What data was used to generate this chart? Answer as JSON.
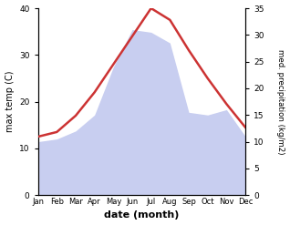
{
  "months": [
    "Jan",
    "Feb",
    "Mar",
    "Apr",
    "May",
    "Jun",
    "Jul",
    "Aug",
    "Sep",
    "Oct",
    "Nov",
    "Dec"
  ],
  "temperature": [
    12.5,
    13.5,
    17.0,
    22.0,
    28.0,
    34.0,
    40.0,
    37.5,
    31.0,
    25.0,
    19.5,
    14.5
  ],
  "precipitation": [
    10.0,
    10.5,
    12.0,
    15.0,
    24.0,
    31.0,
    30.5,
    28.5,
    15.5,
    15.0,
    16.0,
    11.0
  ],
  "temp_color": "#cc3333",
  "precip_fill_color": "#c8cef0",
  "ylabel_left": "max temp (C)",
  "ylabel_right": "med. precipitation (kg/m2)",
  "xlabel": "date (month)",
  "ylim_left": [
    0,
    40
  ],
  "ylim_right": [
    0,
    35
  ],
  "yticks_left": [
    0,
    10,
    20,
    30,
    40
  ],
  "yticks_right": [
    0,
    5,
    10,
    15,
    20,
    25,
    30,
    35
  ]
}
